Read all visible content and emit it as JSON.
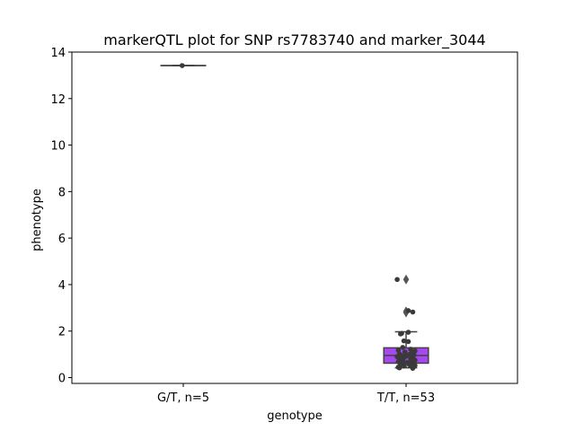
{
  "chart_data": {
    "type": "box",
    "title": "markerQTL plot for SNP rs7783740 and marker_3044",
    "xlabel": "genotype",
    "ylabel": "phenotype",
    "ylim": [
      -0.25,
      14.0
    ],
    "yticks": [
      "0",
      "2",
      "4",
      "6",
      "8",
      "10",
      "12",
      "14"
    ],
    "grid": false,
    "categories": [
      "G/T, n=5",
      "T/T, n=53"
    ],
    "colors": {
      "box_tt": "#a548f0",
      "box_edge": "#404040",
      "points": "#3a3a3a"
    },
    "boxes": [
      {
        "category": "G/T, n=5",
        "q1": 13.42,
        "median": 13.42,
        "q3": 13.42,
        "whisker_low": 13.42,
        "whisker_high": 13.42,
        "outliers": []
      },
      {
        "category": "T/T, n=53",
        "q1": 0.62,
        "median": 0.95,
        "q3": 1.28,
        "whisker_low": 0.42,
        "whisker_high": 1.97,
        "outliers": [
          2.8,
          2.85,
          4.22
        ]
      }
    ],
    "points": [
      {
        "category": "G/T, n=5",
        "values": [
          13.42
        ],
        "jitter": [
          -0.01
        ]
      },
      {
        "category": "T/T, n=53",
        "values": [
          4.22,
          2.88,
          2.82,
          1.95,
          1.9,
          1.88,
          1.58,
          1.55,
          1.3,
          1.22,
          1.18,
          1.15,
          1.1,
          1.05,
          1.02,
          1.0,
          0.98,
          0.95,
          0.92,
          0.9,
          0.88,
          0.85,
          0.82,
          0.78,
          0.75,
          0.72,
          0.7,
          0.68,
          0.65,
          0.62,
          0.58,
          0.55,
          0.52,
          0.5,
          0.48,
          0.45,
          0.42,
          0.4
        ],
        "jitter": [
          -0.08,
          0.02,
          0.06,
          0.02,
          -0.04,
          -0.05,
          -0.02,
          0.02,
          -0.03,
          0.04,
          -0.07,
          0.08,
          -0.01,
          0.05,
          -0.06,
          0.03,
          0.07,
          -0.04,
          0.0,
          -0.08,
          0.06,
          -0.02,
          0.04,
          -0.06,
          0.08,
          -0.03,
          0.05,
          -0.07,
          0.01,
          0.07,
          -0.05,
          0.03,
          0.08,
          -0.02,
          0.05,
          -0.07,
          -0.06,
          0.06
        ]
      }
    ]
  }
}
